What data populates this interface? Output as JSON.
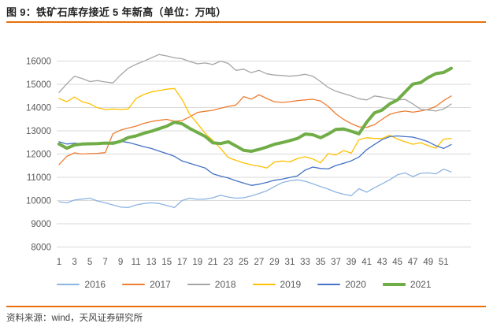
{
  "figure": {
    "title": "图 9：铁矿石库存接近 5 年新高（单位：万吨）",
    "source": "资料来源：wind，天风证券研究所"
  },
  "colors": {
    "accent_rule": "#E8700A",
    "grid_line": "#D9D9D9",
    "axis_text": "#595959",
    "title_text": "#1F1F1F",
    "source_text": "#404040"
  },
  "chart_data": {
    "type": "line",
    "title": "铁矿石库存接近5年新高（单位：万吨）",
    "unit": "万吨",
    "xlabel": "",
    "ylabel": "",
    "ylim": [
      8000,
      16000
    ],
    "y_ticks": [
      8000,
      9000,
      10000,
      11000,
      12000,
      13000,
      14000,
      15000,
      16000
    ],
    "x": [
      1,
      2,
      3,
      4,
      5,
      6,
      7,
      8,
      9,
      10,
      11,
      12,
      13,
      14,
      15,
      16,
      17,
      18,
      19,
      20,
      21,
      22,
      23,
      24,
      25,
      26,
      27,
      28,
      29,
      30,
      31,
      32,
      33,
      34,
      35,
      36,
      37,
      38,
      39,
      40,
      41,
      42,
      43,
      44,
      45,
      46,
      47,
      48,
      49,
      50,
      51,
      52
    ],
    "x_ticks": [
      1,
      3,
      5,
      7,
      9,
      11,
      13,
      15,
      17,
      19,
      21,
      23,
      25,
      27,
      29,
      31,
      33,
      35,
      37,
      39,
      41,
      43,
      45,
      47,
      49,
      51
    ],
    "grid": true,
    "legend_position": "bottom",
    "series": [
      {
        "name": "2016",
        "color": "#8DB4E2",
        "stroke_width": 1.3,
        "values": [
          9950,
          9900,
          10020,
          10060,
          10100,
          9980,
          9900,
          9810,
          9720,
          9700,
          9810,
          9870,
          9900,
          9870,
          9790,
          9700,
          10000,
          10100,
          10050,
          10060,
          10120,
          10230,
          10150,
          10100,
          10120,
          10200,
          10300,
          10420,
          10600,
          10770,
          10850,
          10890,
          10830,
          10720,
          10600,
          10490,
          10360,
          10270,
          10210,
          10510,
          10360,
          10550,
          10720,
          10890,
          11110,
          11190,
          11030,
          11170,
          11190,
          11150,
          11350,
          11230
        ]
      },
      {
        "name": "2017",
        "color": "#ED7D31",
        "stroke_width": 1.3,
        "values": [
          11550,
          11900,
          12050,
          12000,
          12020,
          12030,
          12060,
          12870,
          13030,
          13120,
          13200,
          13320,
          13400,
          13450,
          13490,
          13410,
          13440,
          13600,
          13790,
          13840,
          13880,
          13970,
          14050,
          14110,
          14470,
          14360,
          14550,
          14390,
          14250,
          14220,
          14250,
          14300,
          14330,
          14360,
          14280,
          14050,
          13730,
          13490,
          13310,
          13170,
          13150,
          13260,
          13490,
          13710,
          13800,
          13850,
          13800,
          13850,
          13920,
          14050,
          14300,
          14500
        ]
      },
      {
        "name": "2018",
        "color": "#A5A5A5",
        "stroke_width": 1.3,
        "values": [
          14650,
          15020,
          15350,
          15250,
          15120,
          15160,
          15100,
          15060,
          15400,
          15690,
          15860,
          15990,
          16140,
          16280,
          16220,
          16140,
          16100,
          15980,
          15880,
          15920,
          15850,
          16000,
          15900,
          15600,
          15650,
          15500,
          15600,
          15450,
          15400,
          15380,
          15350,
          15380,
          15430,
          15350,
          15120,
          14860,
          14700,
          14600,
          14500,
          14380,
          14330,
          14500,
          14450,
          14380,
          14330,
          14350,
          14160,
          13930,
          13890,
          13850,
          13940,
          14150
        ]
      },
      {
        "name": "2019",
        "color": "#FFC000",
        "stroke_width": 1.3,
        "values": [
          14390,
          14250,
          14450,
          14250,
          14160,
          13990,
          13920,
          13940,
          13920,
          13940,
          14390,
          14560,
          14670,
          14730,
          14790,
          14820,
          14350,
          13700,
          13300,
          12890,
          12580,
          12240,
          11850,
          11730,
          11620,
          11540,
          11480,
          11400,
          11650,
          11700,
          11660,
          11810,
          11880,
          11790,
          11620,
          12020,
          11960,
          12150,
          12040,
          12620,
          12700,
          12670,
          12670,
          12810,
          12640,
          12530,
          12420,
          12490,
          12360,
          12250,
          12640,
          12670
        ]
      },
      {
        "name": "2020",
        "color": "#4472C4",
        "stroke_width": 1.3,
        "values": [
          12530,
          12430,
          12470,
          12440,
          12470,
          12440,
          12470,
          12520,
          12550,
          12500,
          12410,
          12320,
          12240,
          12130,
          12020,
          11900,
          11700,
          11600,
          11500,
          11400,
          11150,
          11050,
          10970,
          10850,
          10750,
          10650,
          10700,
          10780,
          10870,
          10920,
          10990,
          11060,
          11310,
          11440,
          11380,
          11360,
          11510,
          11600,
          11710,
          11870,
          12190,
          12410,
          12620,
          12750,
          12780,
          12750,
          12730,
          12640,
          12530,
          12360,
          12240,
          12410
        ]
      },
      {
        "name": "2021",
        "color": "#70AD47",
        "stroke_width": 4,
        "values": [
          12430,
          12250,
          12390,
          12430,
          12440,
          12450,
          12470,
          12460,
          12550,
          12710,
          12780,
          12890,
          12980,
          13090,
          13200,
          13370,
          13300,
          13100,
          12930,
          12760,
          12480,
          12450,
          12530,
          12350,
          12160,
          12120,
          12200,
          12300,
          12420,
          12490,
          12580,
          12670,
          12860,
          12830,
          12700,
          12860,
          13060,
          13080,
          12980,
          12870,
          13370,
          13770,
          13890,
          14160,
          14330,
          14670,
          15010,
          15070,
          15290,
          15460,
          15510,
          15690
        ]
      }
    ]
  }
}
